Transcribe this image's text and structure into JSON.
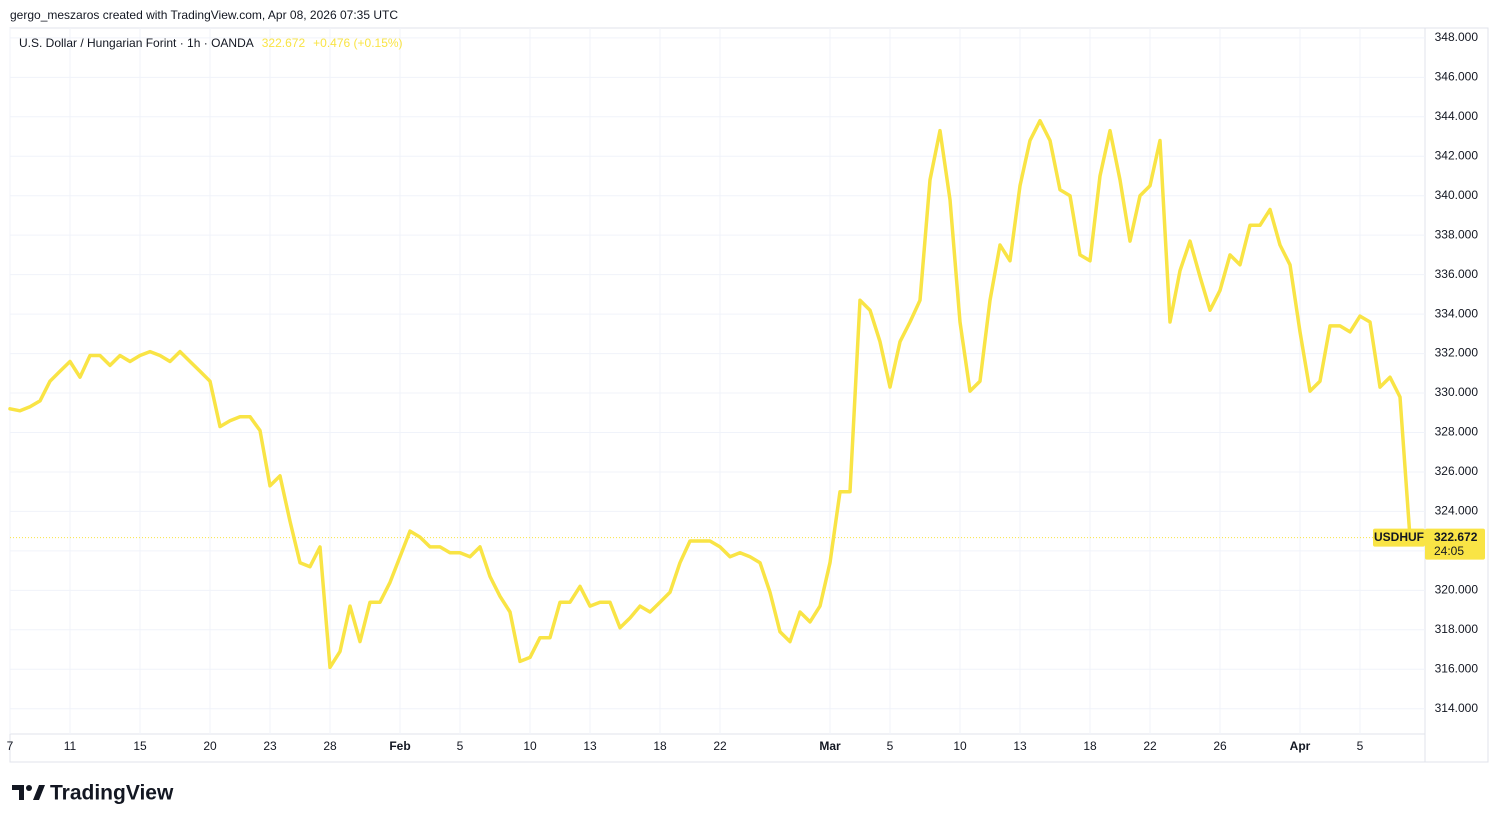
{
  "header": {
    "credit": "gergo_meszaros created with TradingView.com, Apr 08, 2026 07:35 UTC",
    "logo": "TradingView"
  },
  "chart_data": {
    "type": "line",
    "title": "U.S. Dollar / Hungarian Forint · 1h · OANDA",
    "last_price": 322.672,
    "change": "+0.476 (+0.15%)",
    "countdown": "24:05",
    "grid": true,
    "categories": [
      "7",
      null,
      null,
      null,
      null,
      null,
      "11",
      null,
      null,
      null,
      null,
      null,
      null,
      "15",
      null,
      null,
      null,
      null,
      null,
      null,
      "20",
      null,
      null,
      null,
      null,
      null,
      "23",
      null,
      null,
      null,
      null,
      null,
      "28",
      null,
      null,
      null,
      null,
      null,
      null,
      "Feb",
      null,
      null,
      null,
      null,
      null,
      "5",
      null,
      null,
      null,
      null,
      null,
      null,
      "10",
      null,
      null,
      null,
      null,
      null,
      "13",
      null,
      null,
      null,
      null,
      null,
      null,
      "18",
      null,
      null,
      null,
      null,
      null,
      "22",
      null,
      null,
      null,
      null,
      null,
      null,
      null,
      null,
      null,
      null,
      "Mar",
      null,
      null,
      null,
      null,
      null,
      "5",
      null,
      null,
      null,
      null,
      null,
      null,
      "10",
      null,
      null,
      null,
      null,
      null,
      "13",
      null,
      null,
      null,
      null,
      null,
      null,
      "18",
      null,
      null,
      null,
      null,
      null,
      "22",
      null,
      null,
      null,
      null,
      null,
      null,
      "26",
      null,
      null,
      null,
      null,
      null,
      null,
      null,
      "Apr",
      null,
      null,
      null,
      null,
      null,
      "5",
      null,
      null,
      null,
      null,
      null
    ],
    "series": [
      {
        "name": "USDHUF",
        "color": "#f9e445",
        "values": [
          329.2,
          329.1,
          329.3,
          329.6,
          330.6,
          331.1,
          331.6,
          330.8,
          331.9,
          331.9,
          331.4,
          331.9,
          331.6,
          331.9,
          332.1,
          331.9,
          331.6,
          332.1,
          331.6,
          331.1,
          330.6,
          328.3,
          328.6,
          328.8,
          328.8,
          328.1,
          325.3,
          325.8,
          323.5,
          321.4,
          321.2,
          322.2,
          316.1,
          316.9,
          319.2,
          317.4,
          319.4,
          319.4,
          320.4,
          321.7,
          323.0,
          322.7,
          322.2,
          322.2,
          321.9,
          321.9,
          321.7,
          322.2,
          320.7,
          319.7,
          318.9,
          316.4,
          316.6,
          317.6,
          317.6,
          319.4,
          319.4,
          320.2,
          319.2,
          319.4,
          319.4,
          318.1,
          318.6,
          319.2,
          318.9,
          319.4,
          319.9,
          321.4,
          322.5,
          322.5,
          322.5,
          322.2,
          321.7,
          321.9,
          321.7,
          321.4,
          319.9,
          317.9,
          317.4,
          318.9,
          318.4,
          319.2,
          321.4,
          325.0,
          325.0,
          334.7,
          334.2,
          332.6,
          330.3,
          332.6,
          333.6,
          334.7,
          340.8,
          343.3,
          339.8,
          333.6,
          330.1,
          330.6,
          334.7,
          337.5,
          336.7,
          340.5,
          342.8,
          343.8,
          342.8,
          340.3,
          340.0,
          337.0,
          336.7,
          341.0,
          343.3,
          340.8,
          337.7,
          340.0,
          340.5,
          342.8,
          333.6,
          336.2,
          337.7,
          335.9,
          334.2,
          335.2,
          337.0,
          336.5,
          338.5,
          338.5,
          339.3,
          337.5,
          336.5,
          333.1,
          330.1,
          330.6,
          333.4,
          333.4,
          333.1,
          333.9,
          333.6,
          330.3,
          330.8,
          329.8,
          322.672
        ]
      }
    ],
    "ylim": [
      311.3,
      348.5
    ],
    "yticks": [
      {
        "value": 314,
        "label": "314.000"
      },
      {
        "value": 316,
        "label": "316.000"
      },
      {
        "value": 318,
        "label": "318.000"
      },
      {
        "value": 320,
        "label": "320.000"
      },
      {
        "value": 322,
        "label": "322.000"
      },
      {
        "value": 324,
        "label": "324.000"
      },
      {
        "value": 326,
        "label": "326.000"
      },
      {
        "value": 328,
        "label": "328.000"
      },
      {
        "value": 330,
        "label": "330.000"
      },
      {
        "value": 332,
        "label": "332.000"
      },
      {
        "value": 334,
        "label": "334.000"
      },
      {
        "value": 336,
        "label": "336.000"
      },
      {
        "value": 338,
        "label": "338.000"
      },
      {
        "value": 340,
        "label": "340.000"
      },
      {
        "value": 342,
        "label": "342.000"
      },
      {
        "value": 344,
        "label": "344.000"
      },
      {
        "value": 346,
        "label": "346.000"
      },
      {
        "value": 348,
        "label": "348.000"
      }
    ]
  }
}
